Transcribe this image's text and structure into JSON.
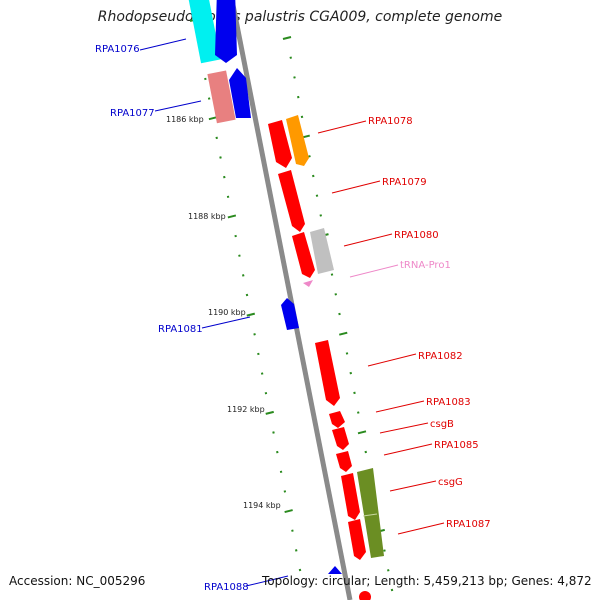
{
  "title": "Rhodopseudomonas palustris CGA009, complete genome",
  "footer": {
    "accession": "Accession: NC_005296",
    "topology": "Topology: circular; Length: 5,459,213 bp; Genes: 4,872"
  },
  "colors": {
    "backbone": "#8a8a8a",
    "tick": "#2a8a1e",
    "red_gene": "#ff0000",
    "blue_gene": "#0000ee",
    "cyan_gene": "#00f0f0",
    "pink_gene": "#e88080",
    "orange_gene": "#ff9900",
    "gray_gene": "#c0c0c0",
    "olive_gene": "#6b8e23",
    "trna_pink": "#ee88c8",
    "red_label": "#e00000",
    "blue_label": "#0000cc",
    "pink_label": "#ee88c8"
  },
  "kbp_labels": [
    "1186 kbp",
    "1188 kbp",
    "1190 kbp",
    "1192 kbp",
    "1194 kbp"
  ],
  "labels": {
    "RPA1076": "RPA1076",
    "RPA1077": "RPA1077",
    "RPA1078": "RPA1078",
    "RPA1079": "RPA1079",
    "RPA1080": "RPA1080",
    "tRNA_Pro1": "tRNA-Pro1",
    "RPA1081": "RPA1081",
    "RPA1082": "RPA1082",
    "RPA1083": "RPA1083",
    "csgB": "csgB",
    "RPA1085": "RPA1085",
    "csgG": "csgG",
    "RPA1087": "RPA1087",
    "RPA1088": "RPA1088"
  }
}
